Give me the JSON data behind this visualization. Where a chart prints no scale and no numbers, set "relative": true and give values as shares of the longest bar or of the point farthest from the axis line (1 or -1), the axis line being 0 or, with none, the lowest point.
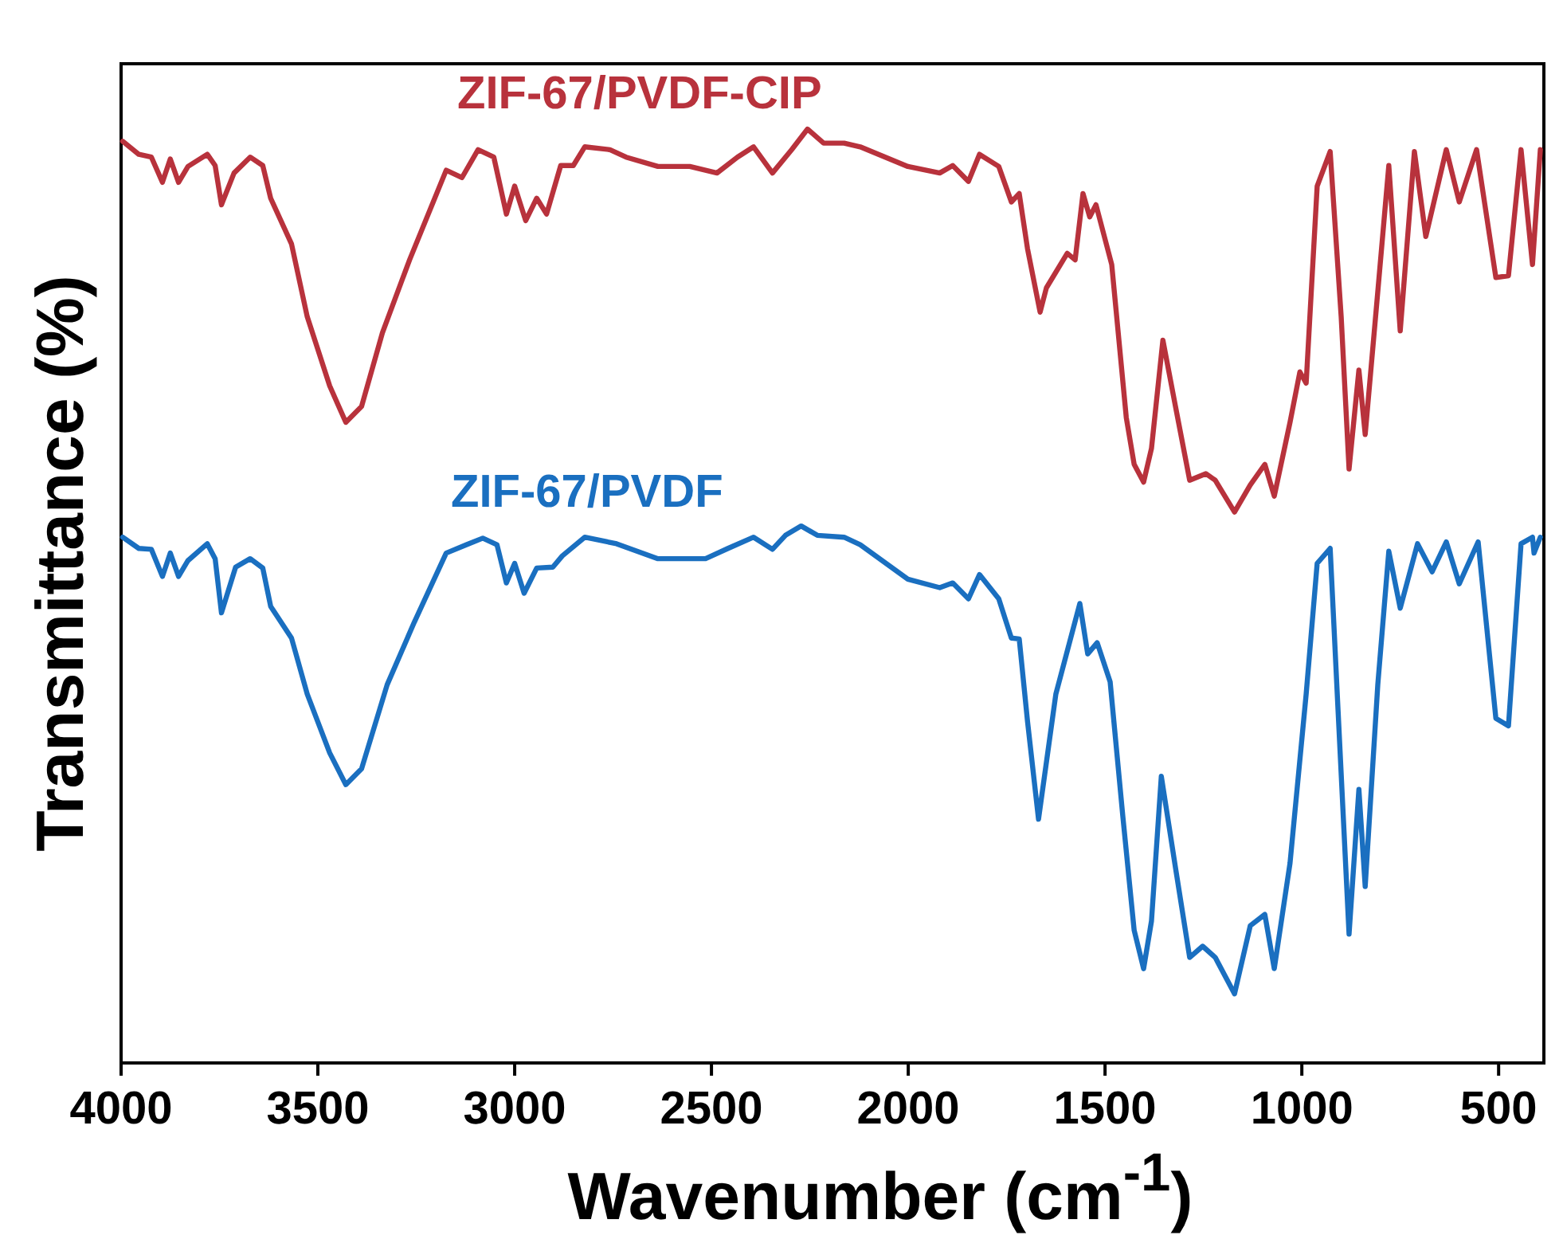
{
  "chart_data": {
    "type": "line",
    "xlabel": "Wavenumber (cm$^{-1}$)",
    "ylabel": "Transmittance (%)",
    "relative": true,
    "xlim": [
      4000,
      385
    ],
    "xticks": [
      4000,
      3500,
      3000,
      2500,
      2000,
      1500,
      1000,
      500
    ],
    "grid": false,
    "line_style": "solid",
    "series": [
      {
        "name": "ZIF-67/PVDF-CIP",
        "color": "#b8323c",
        "x": [
          3996,
          3955,
          3923,
          3895,
          3875,
          3854,
          3830,
          3781,
          3761,
          3745,
          3713,
          3672,
          3640,
          3620,
          3567,
          3527,
          3470,
          3429,
          3389,
          3336,
          3267,
          3174,
          3134,
          3093,
          3053,
          3021,
          3000,
          2972,
          2944,
          2919,
          2883,
          2851,
          2822,
          2758,
          2717,
          2636,
          2555,
          2486,
          2434,
          2393,
          2345,
          2296,
          2256,
          2215,
          2163,
          2122,
          2001,
          1920,
          1887,
          1847,
          1819,
          1770,
          1738,
          1718,
          1697,
          1665,
          1649,
          1596,
          1576,
          1556,
          1539,
          1523,
          1483,
          1446,
          1426,
          1402,
          1382,
          1353,
          1321,
          1285,
          1244,
          1220,
          1171,
          1131,
          1094,
          1070,
          1030,
          1005,
          989,
          961,
          928,
          900,
          880,
          855,
          839,
          807,
          779,
          750,
          714,
          685,
          633,
          600,
          556,
          507,
          475,
          443,
          414,
          394
        ],
        "values": [
          0.987,
          0.973,
          0.97,
          0.943,
          0.968,
          0.943,
          0.96,
          0.973,
          0.961,
          0.919,
          0.953,
          0.97,
          0.961,
          0.926,
          0.877,
          0.799,
          0.725,
          0.686,
          0.703,
          0.782,
          0.86,
          0.956,
          0.948,
          0.978,
          0.97,
          0.909,
          0.939,
          0.902,
          0.926,
          0.909,
          0.961,
          0.961,
          0.981,
          0.978,
          0.97,
          0.96,
          0.96,
          0.953,
          0.97,
          0.981,
          0.953,
          0.978,
          1,
          0.985,
          0.985,
          0.981,
          0.96,
          0.953,
          0.961,
          0.944,
          0.973,
          0.96,
          0.922,
          0.931,
          0.872,
          0.804,
          0.83,
          0.867,
          0.86,
          0.931,
          0.906,
          0.919,
          0.855,
          0.691,
          0.641,
          0.622,
          0.658,
          0.774,
          0.703,
          0.624,
          0.631,
          0.624,
          0.59,
          0.619,
          0.641,
          0.607,
          0.686,
          0.74,
          0.728,
          0.939,
          0.976,
          0.799,
          0.636,
          0.742,
          0.673,
          0.826,
          0.961,
          0.784,
          0.976,
          0.885,
          0.978,
          0.922,
          0.978,
          0.841,
          0.843,
          0.978,
          0.855,
          0.978
        ]
      },
      {
        "name": "ZIF-67/PVDF",
        "color": "#1a6fc0",
        "x": [
          3996,
          3955,
          3923,
          3895,
          3875,
          3854,
          3830,
          3781,
          3761,
          3745,
          3709,
          3672,
          3640,
          3620,
          3567,
          3527,
          3470,
          3429,
          3389,
          3324,
          3255,
          3174,
          3122,
          3081,
          3045,
          3021,
          3000,
          2976,
          2944,
          2903,
          2879,
          2822,
          2741,
          2636,
          2515,
          2458,
          2393,
          2345,
          2312,
          2272,
          2231,
          2163,
          2122,
          2001,
          1920,
          1887,
          1847,
          1819,
          1770,
          1738,
          1718,
          1697,
          1669,
          1625,
          1564,
          1544,
          1520,
          1487,
          1455,
          1426,
          1402,
          1382,
          1357,
          1321,
          1285,
          1252,
          1220,
          1171,
          1131,
          1094,
          1070,
          1030,
          989,
          961,
          928,
          908,
          880,
          855,
          839,
          807,
          779,
          750,
          706,
          669,
          633,
          600,
          552,
          507,
          475,
          443,
          414,
          410,
          394
        ],
        "values": [
          0.563,
          0.551,
          0.55,
          0.521,
          0.546,
          0.521,
          0.538,
          0.556,
          0.54,
          0.482,
          0.531,
          0.54,
          0.53,
          0.489,
          0.455,
          0.395,
          0.332,
          0.298,
          0.315,
          0.405,
          0.472,
          0.546,
          0.555,
          0.562,
          0.555,
          0.514,
          0.535,
          0.503,
          0.53,
          0.531,
          0.543,
          0.563,
          0.556,
          0.54,
          0.54,
          0.551,
          0.563,
          0.55,
          0.565,
          0.575,
          0.565,
          0.563,
          0.555,
          0.518,
          0.509,
          0.514,
          0.497,
          0.523,
          0.497,
          0.455,
          0.454,
          0.366,
          0.261,
          0.395,
          0.492,
          0.438,
          0.45,
          0.408,
          0.265,
          0.142,
          0.101,
          0.152,
          0.307,
          0.209,
          0.113,
          0.125,
          0.113,
          0.074,
          0.147,
          0.159,
          0.101,
          0.214,
          0.395,
          0.535,
          0.551,
          0.378,
          0.138,
          0.293,
          0.189,
          0.405,
          0.548,
          0.487,
          0.556,
          0.526,
          0.558,
          0.513,
          0.558,
          0.369,
          0.361,
          0.556,
          0.563,
          0.546,
          0.563
        ]
      }
    ]
  }
}
